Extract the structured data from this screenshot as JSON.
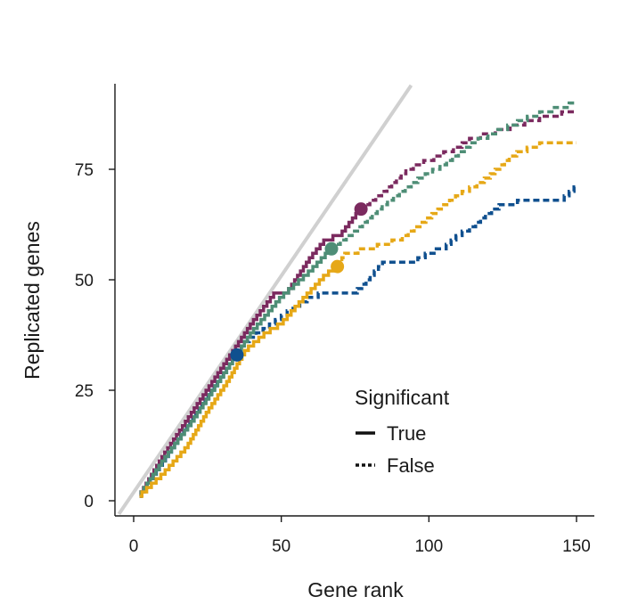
{
  "chart_data": {
    "type": "line",
    "title": "",
    "xlabel": "Gene rank",
    "ylabel": "Replicated genes",
    "xlim": [
      -5,
      156
    ],
    "ylim": [
      -3,
      94
    ],
    "x_ticks": [
      0,
      50,
      100,
      150
    ],
    "y_ticks": [
      0,
      25,
      50,
      75
    ],
    "grid": false,
    "reference_line": {
      "from": [
        -5,
        -3
      ],
      "to": [
        94,
        94
      ],
      "color": "#d0d0d0"
    },
    "legend": {
      "title": "Significant",
      "placement": "bottom-right",
      "entries": [
        {
          "label": "True",
          "style": "solid"
        },
        {
          "label": "False",
          "style": "dashed"
        }
      ]
    },
    "series": [
      {
        "color": "#10508f",
        "cutoff": {
          "x": 35,
          "y": 33
        },
        "points": [
          [
            2,
            1
          ],
          [
            35,
            33
          ],
          [
            38,
            36
          ],
          [
            45,
            39
          ],
          [
            55,
            44
          ],
          [
            60,
            46
          ],
          [
            65,
            47
          ],
          [
            75,
            47
          ],
          [
            78,
            49
          ],
          [
            85,
            54
          ],
          [
            95,
            54
          ],
          [
            100,
            56
          ],
          [
            105,
            57
          ],
          [
            110,
            60
          ],
          [
            115,
            62
          ],
          [
            120,
            65
          ],
          [
            125,
            67
          ],
          [
            135,
            68
          ],
          [
            145,
            68
          ],
          [
            150,
            71
          ]
        ]
      },
      {
        "color": "#7b2a5f",
        "cutoff": {
          "x": 77,
          "y": 66
        },
        "points": [
          [
            2,
            1
          ],
          [
            10,
            10
          ],
          [
            20,
            20
          ],
          [
            30,
            30
          ],
          [
            40,
            40
          ],
          [
            48,
            47
          ],
          [
            52,
            47
          ],
          [
            60,
            55
          ],
          [
            65,
            59
          ],
          [
            70,
            60
          ],
          [
            77,
            66
          ],
          [
            85,
            70
          ],
          [
            93,
            75
          ],
          [
            100,
            77
          ],
          [
            110,
            80
          ],
          [
            115,
            82
          ],
          [
            125,
            84
          ],
          [
            140,
            87
          ],
          [
            150,
            88
          ]
        ]
      },
      {
        "color": "#4e8e76",
        "cutoff": {
          "x": 67,
          "y": 57
        },
        "points": [
          [
            2,
            1
          ],
          [
            10,
            9
          ],
          [
            20,
            18
          ],
          [
            30,
            28
          ],
          [
            40,
            38
          ],
          [
            50,
            46
          ],
          [
            55,
            49
          ],
          [
            60,
            52
          ],
          [
            67,
            57
          ],
          [
            75,
            61
          ],
          [
            85,
            67
          ],
          [
            95,
            72
          ],
          [
            105,
            76
          ],
          [
            115,
            81
          ],
          [
            125,
            84
          ],
          [
            135,
            87
          ],
          [
            145,
            89
          ],
          [
            150,
            90
          ]
        ]
      },
      {
        "color": "#e6a817",
        "cutoff": {
          "x": 69,
          "y": 53
        },
        "points": [
          [
            2,
            1
          ],
          [
            10,
            6
          ],
          [
            18,
            12
          ],
          [
            25,
            20
          ],
          [
            32,
            27
          ],
          [
            38,
            34
          ],
          [
            45,
            38
          ],
          [
            50,
            40
          ],
          [
            58,
            46
          ],
          [
            65,
            51
          ],
          [
            69,
            53
          ],
          [
            72,
            56
          ],
          [
            80,
            57
          ],
          [
            90,
            59
          ],
          [
            100,
            64
          ],
          [
            110,
            69
          ],
          [
            120,
            73
          ],
          [
            128,
            78
          ],
          [
            135,
            80
          ],
          [
            140,
            81
          ],
          [
            150,
            81
          ]
        ]
      }
    ]
  }
}
